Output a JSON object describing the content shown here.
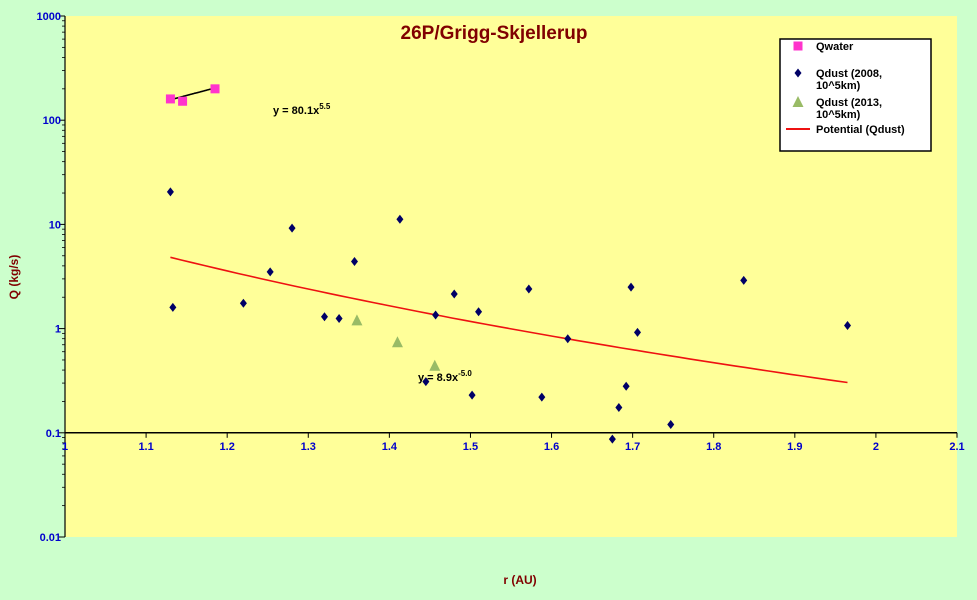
{
  "chart_data": {
    "type": "scatter",
    "title": "26P/Grigg-Skjellerup",
    "xlabel": "r (AU)",
    "ylabel": "Q (kg/s)",
    "xlim": [
      1.0,
      2.1
    ],
    "ylim": [
      0.01,
      1000
    ],
    "yscale": "log",
    "x_ticks": [
      "1",
      "1.1",
      "1.2",
      "1.3",
      "1.4",
      "1.5",
      "1.6",
      "1.7",
      "1.8",
      "1.9",
      "2",
      "2.1"
    ],
    "y_ticks": [
      "0.01",
      "0.1",
      "1",
      "10",
      "100",
      "1000"
    ],
    "x_axis_crosses_y": 0.1,
    "legend_position": "top-right",
    "series": [
      {
        "name": "Qwater",
        "marker": "square",
        "color": "#ff33cc",
        "points": [
          [
            1.13,
            160
          ],
          [
            1.145,
            152
          ],
          [
            1.185,
            200
          ]
        ]
      },
      {
        "name": "Qdust (2008, 10^5km)",
        "marker": "diamond",
        "color": "#000066",
        "points": [
          [
            1.13,
            20.5
          ],
          [
            1.133,
            1.6
          ],
          [
            1.22,
            1.75
          ],
          [
            1.253,
            3.5
          ],
          [
            1.28,
            9.2
          ],
          [
            1.32,
            1.3
          ],
          [
            1.338,
            1.25
          ],
          [
            1.357,
            4.4
          ],
          [
            1.413,
            11.2
          ],
          [
            1.445,
            0.31
          ],
          [
            1.457,
            1.35
          ],
          [
            1.48,
            2.15
          ],
          [
            1.502,
            0.23
          ],
          [
            1.51,
            1.45
          ],
          [
            1.572,
            2.4
          ],
          [
            1.588,
            0.22
          ],
          [
            1.62,
            0.8
          ],
          [
            1.675,
            0.087
          ],
          [
            1.683,
            0.175
          ],
          [
            1.692,
            0.28
          ],
          [
            1.698,
            2.5
          ],
          [
            1.706,
            0.92
          ],
          [
            1.747,
            0.12
          ],
          [
            1.837,
            2.9
          ],
          [
            1.965,
            1.07
          ]
        ]
      },
      {
        "name": "Qdust (2013, 10^5km)",
        "marker": "triangle",
        "color": "#99bb66",
        "points": [
          [
            1.36,
            1.2
          ],
          [
            1.41,
            0.74
          ],
          [
            1.456,
            0.44
          ]
        ]
      }
    ],
    "trendlines": [
      {
        "name": "Potential (Qdust)",
        "color": "#ee1111",
        "coef": 8.9,
        "exp": -5.0,
        "x_range": [
          1.13,
          1.965
        ],
        "in_legend": true,
        "equation_label": "y = 8.9x",
        "equation_exp": "-5.0"
      },
      {
        "name": "",
        "color": "#000000",
        "coef": 80.1,
        "exp": 5.5,
        "x_range": [
          1.13,
          1.185
        ],
        "in_legend": false,
        "equation_label": "y = 80.1x",
        "equation_exp": "5.5"
      }
    ]
  }
}
